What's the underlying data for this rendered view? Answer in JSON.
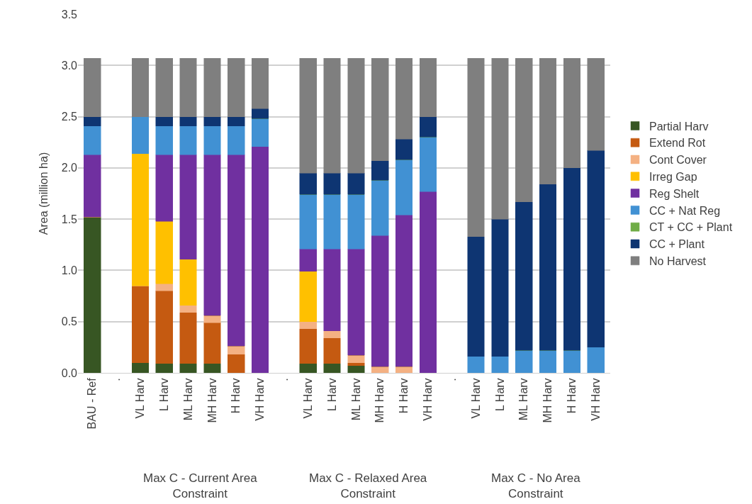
{
  "chart_data": {
    "type": "bar",
    "stacked": true,
    "ylabel": "Area (million ha)",
    "categories": [
      "BAU - Ref",
      ".",
      "VL Harv",
      "L Harv",
      "ML Harv",
      "MH Harv",
      "H Harv",
      "VH Harv",
      ".",
      "VL Harv",
      "L Harv",
      "ML Harv",
      "MH Harv",
      "H Harv",
      "VH Harv",
      ".",
      "VL Harv",
      "L Harv",
      "ML Harv",
      "MH Harv",
      "H Harv",
      "VH Harv"
    ],
    "annotations": [
      "Max C - Current Area Constraint",
      "Max C - Relaxed Area Constraint",
      "Max C - No Area Constraint"
    ],
    "series": [
      {
        "name": "Partial Harv",
        "color": "#375623",
        "values": [
          1.52,
          null,
          0.1,
          0.09,
          0.09,
          0.09,
          0,
          0,
          null,
          0.09,
          0.09,
          0.07,
          0,
          0,
          0,
          null,
          0,
          0,
          0,
          0,
          0,
          0
        ]
      },
      {
        "name": "Extend Rot",
        "color": "#c55a11",
        "values": [
          0,
          null,
          0.75,
          0.71,
          0.5,
          0.4,
          0.18,
          0,
          null,
          0.34,
          0.25,
          0.03,
          0,
          0,
          0,
          null,
          0,
          0,
          0,
          0,
          0,
          0
        ]
      },
      {
        "name": "Cont Cover",
        "color": "#f4b183",
        "values": [
          0,
          null,
          0,
          0.07,
          0.07,
          0.07,
          0.08,
          0,
          null,
          0.07,
          0.07,
          0.07,
          0.06,
          0.06,
          0,
          null,
          0,
          0,
          0,
          0,
          0,
          0
        ]
      },
      {
        "name": "Irreg Gap",
        "color": "#ffc000",
        "values": [
          0,
          null,
          1.29,
          0.61,
          0.45,
          0,
          0,
          0,
          null,
          0.49,
          0,
          0,
          0,
          0,
          0,
          null,
          0,
          0,
          0,
          0,
          0,
          0
        ]
      },
      {
        "name": "Reg Shelt",
        "color": "#7030a0",
        "values": [
          0.61,
          null,
          0,
          0.65,
          1.02,
          1.57,
          1.87,
          2.21,
          null,
          0.22,
          0.8,
          1.04,
          1.28,
          1.48,
          1.77,
          null,
          0,
          0,
          0,
          0,
          0,
          0
        ]
      },
      {
        "name": "CC + Nat Reg",
        "color": "#4191d3",
        "values": [
          0.28,
          null,
          0.36,
          0.28,
          0.28,
          0.28,
          0.28,
          0.27,
          null,
          0.53,
          0.53,
          0.53,
          0.54,
          0.54,
          0.53,
          null,
          0.16,
          0.16,
          0.22,
          0.22,
          0.22,
          0.25
        ]
      },
      {
        "name": "CT + CC + Plant",
        "color": "#70ad47",
        "values": [
          0,
          null,
          0,
          0,
          0,
          0,
          0,
          0,
          null,
          0,
          0,
          0,
          0,
          0,
          0,
          null,
          0,
          0,
          0,
          0,
          0,
          0
        ]
      },
      {
        "name": "CC + Plant",
        "color": "#0e3572",
        "values": [
          0.09,
          null,
          0,
          0.09,
          0.09,
          0.09,
          0.09,
          0.1,
          null,
          0.21,
          0.21,
          0.21,
          0.19,
          0.2,
          0.2,
          null,
          1.17,
          1.34,
          1.45,
          1.62,
          1.78,
          1.92
        ]
      },
      {
        "name": "No Harvest",
        "color": "#7f7f7f",
        "values": [
          0.57,
          null,
          0.57,
          0.57,
          0.57,
          0.57,
          0.57,
          0.49,
          null,
          1.12,
          1.12,
          1.12,
          1.0,
          0.79,
          0.57,
          null,
          1.74,
          1.57,
          1.4,
          1.23,
          1.07,
          0.9
        ]
      }
    ],
    "ylim": [
      0,
      3.5
    ],
    "yticks": [
      {
        "value": 0,
        "label": "0.0"
      },
      {
        "value": 0.5,
        "label": "0.5"
      },
      {
        "value": 1,
        "label": "1.0"
      },
      {
        "value": 1.5,
        "label": "1.5"
      },
      {
        "value": 2,
        "label": "2.0"
      },
      {
        "value": 2.5,
        "label": "2.5"
      },
      {
        "value": 3,
        "label": "3.0"
      },
      {
        "value": 3.5,
        "label": "3.5"
      }
    ],
    "grid": "y",
    "legend": "right"
  }
}
